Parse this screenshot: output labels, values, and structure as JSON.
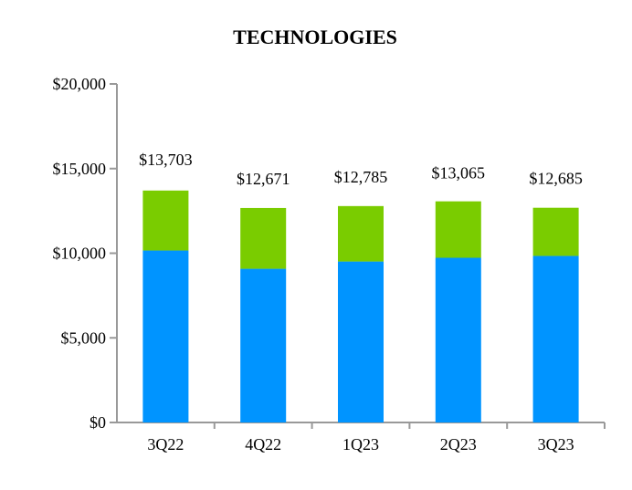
{
  "chart_data": {
    "type": "bar",
    "stacked": true,
    "title": "TECHNOLOGIES",
    "xlabel": "",
    "ylabel": "",
    "categories": [
      "3Q22",
      "4Q22",
      "1Q23",
      "2Q23",
      "3Q23"
    ],
    "series": [
      {
        "values": [
          10160,
          9080,
          9510,
          9730,
          9840
        ],
        "color": "#0094FF"
      },
      {
        "values": [
          3543,
          3591,
          3275,
          3335,
          2845
        ],
        "color": "#7ACC00"
      }
    ],
    "totals": [
      13703,
      12671,
      12785,
      13065,
      12685
    ],
    "total_labels": [
      "$13,703",
      "$12,671",
      "$12,785",
      "$13,065",
      "$12,685"
    ],
    "ylim": [
      0,
      20000
    ],
    "yticks": [
      0,
      5000,
      10000,
      15000,
      20000
    ],
    "ytick_labels": [
      "$0",
      "$5,000",
      "$10,000",
      "$15,000",
      "$20,000"
    ],
    "grid": false
  }
}
